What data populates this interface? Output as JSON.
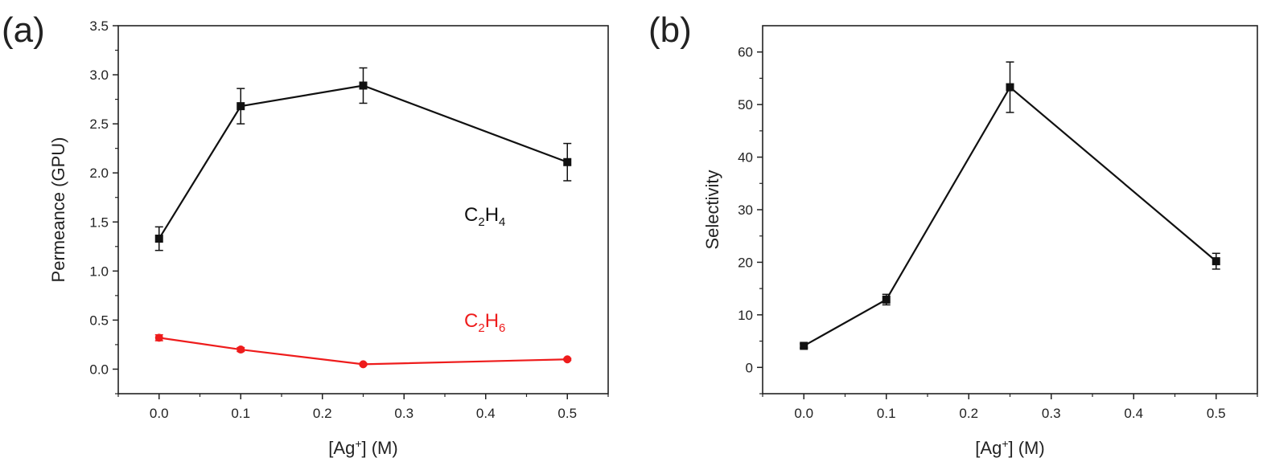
{
  "figure": {
    "panels": [
      {
        "letter": "(a)"
      },
      {
        "letter": "(b)"
      }
    ]
  },
  "chart_data": [
    {
      "type": "line",
      "panel": "(a)",
      "xlabel": {
        "main": "[Ag",
        "sup": "+",
        "rest": "] (M)"
      },
      "ylabel": "Permeance (GPU)",
      "xlim": [
        -0.05,
        0.55
      ],
      "ylim": [
        -0.25,
        3.5
      ],
      "xticks": [
        0.0,
        0.1,
        0.2,
        0.3,
        0.4,
        0.5
      ],
      "xtick_labels": [
        "0.0",
        "0.1",
        "0.2",
        "0.3",
        "0.4",
        "0.5"
      ],
      "yticks": [
        0.0,
        0.5,
        1.0,
        1.5,
        2.0,
        2.5,
        3.0,
        3.5
      ],
      "ytick_labels": [
        "0.0",
        "0.5",
        "1.0",
        "1.5",
        "2.0",
        "2.5",
        "3.0",
        "3.5"
      ],
      "grid": false,
      "series": [
        {
          "name": {
            "a": "C",
            "s1": "2",
            "b": "H",
            "s2": "4"
          },
          "color": "#111111",
          "marker": "square",
          "x": [
            0.0,
            0.1,
            0.25,
            0.5
          ],
          "y": [
            1.33,
            2.68,
            2.89,
            2.11
          ],
          "err": [
            0.12,
            0.18,
            0.18,
            0.19
          ]
        },
        {
          "name": {
            "a": "C",
            "s1": "2",
            "b": "H",
            "s2": "6"
          },
          "color": "#ee1c1c",
          "marker": "circle",
          "x": [
            0.0,
            0.1,
            0.25,
            0.5
          ],
          "y": [
            0.32,
            0.2,
            0.05,
            0.1
          ],
          "err": [
            0.03,
            0.02,
            0.01,
            0.01
          ]
        }
      ]
    },
    {
      "type": "line",
      "panel": "(b)",
      "xlabel": {
        "main": "[Ag",
        "sup": "+",
        "rest": "] (M)"
      },
      "ylabel": "Selectivity",
      "xlim": [
        -0.05,
        0.55
      ],
      "ylim": [
        -5,
        65
      ],
      "xticks": [
        0.0,
        0.1,
        0.2,
        0.3,
        0.4,
        0.5
      ],
      "xtick_labels": [
        "0.0",
        "0.1",
        "0.2",
        "0.3",
        "0.4",
        "0.5"
      ],
      "yticks": [
        0,
        10,
        20,
        30,
        40,
        50,
        60
      ],
      "ytick_labels": [
        "0",
        "10",
        "20",
        "30",
        "40",
        "50",
        "60"
      ],
      "grid": false,
      "series": [
        {
          "color": "#111111",
          "marker": "square",
          "x": [
            0.0,
            0.1,
            0.25,
            0.5
          ],
          "y": [
            4.1,
            12.9,
            53.3,
            20.2
          ],
          "err": [
            0.4,
            1.0,
            4.8,
            1.5
          ]
        }
      ]
    }
  ]
}
